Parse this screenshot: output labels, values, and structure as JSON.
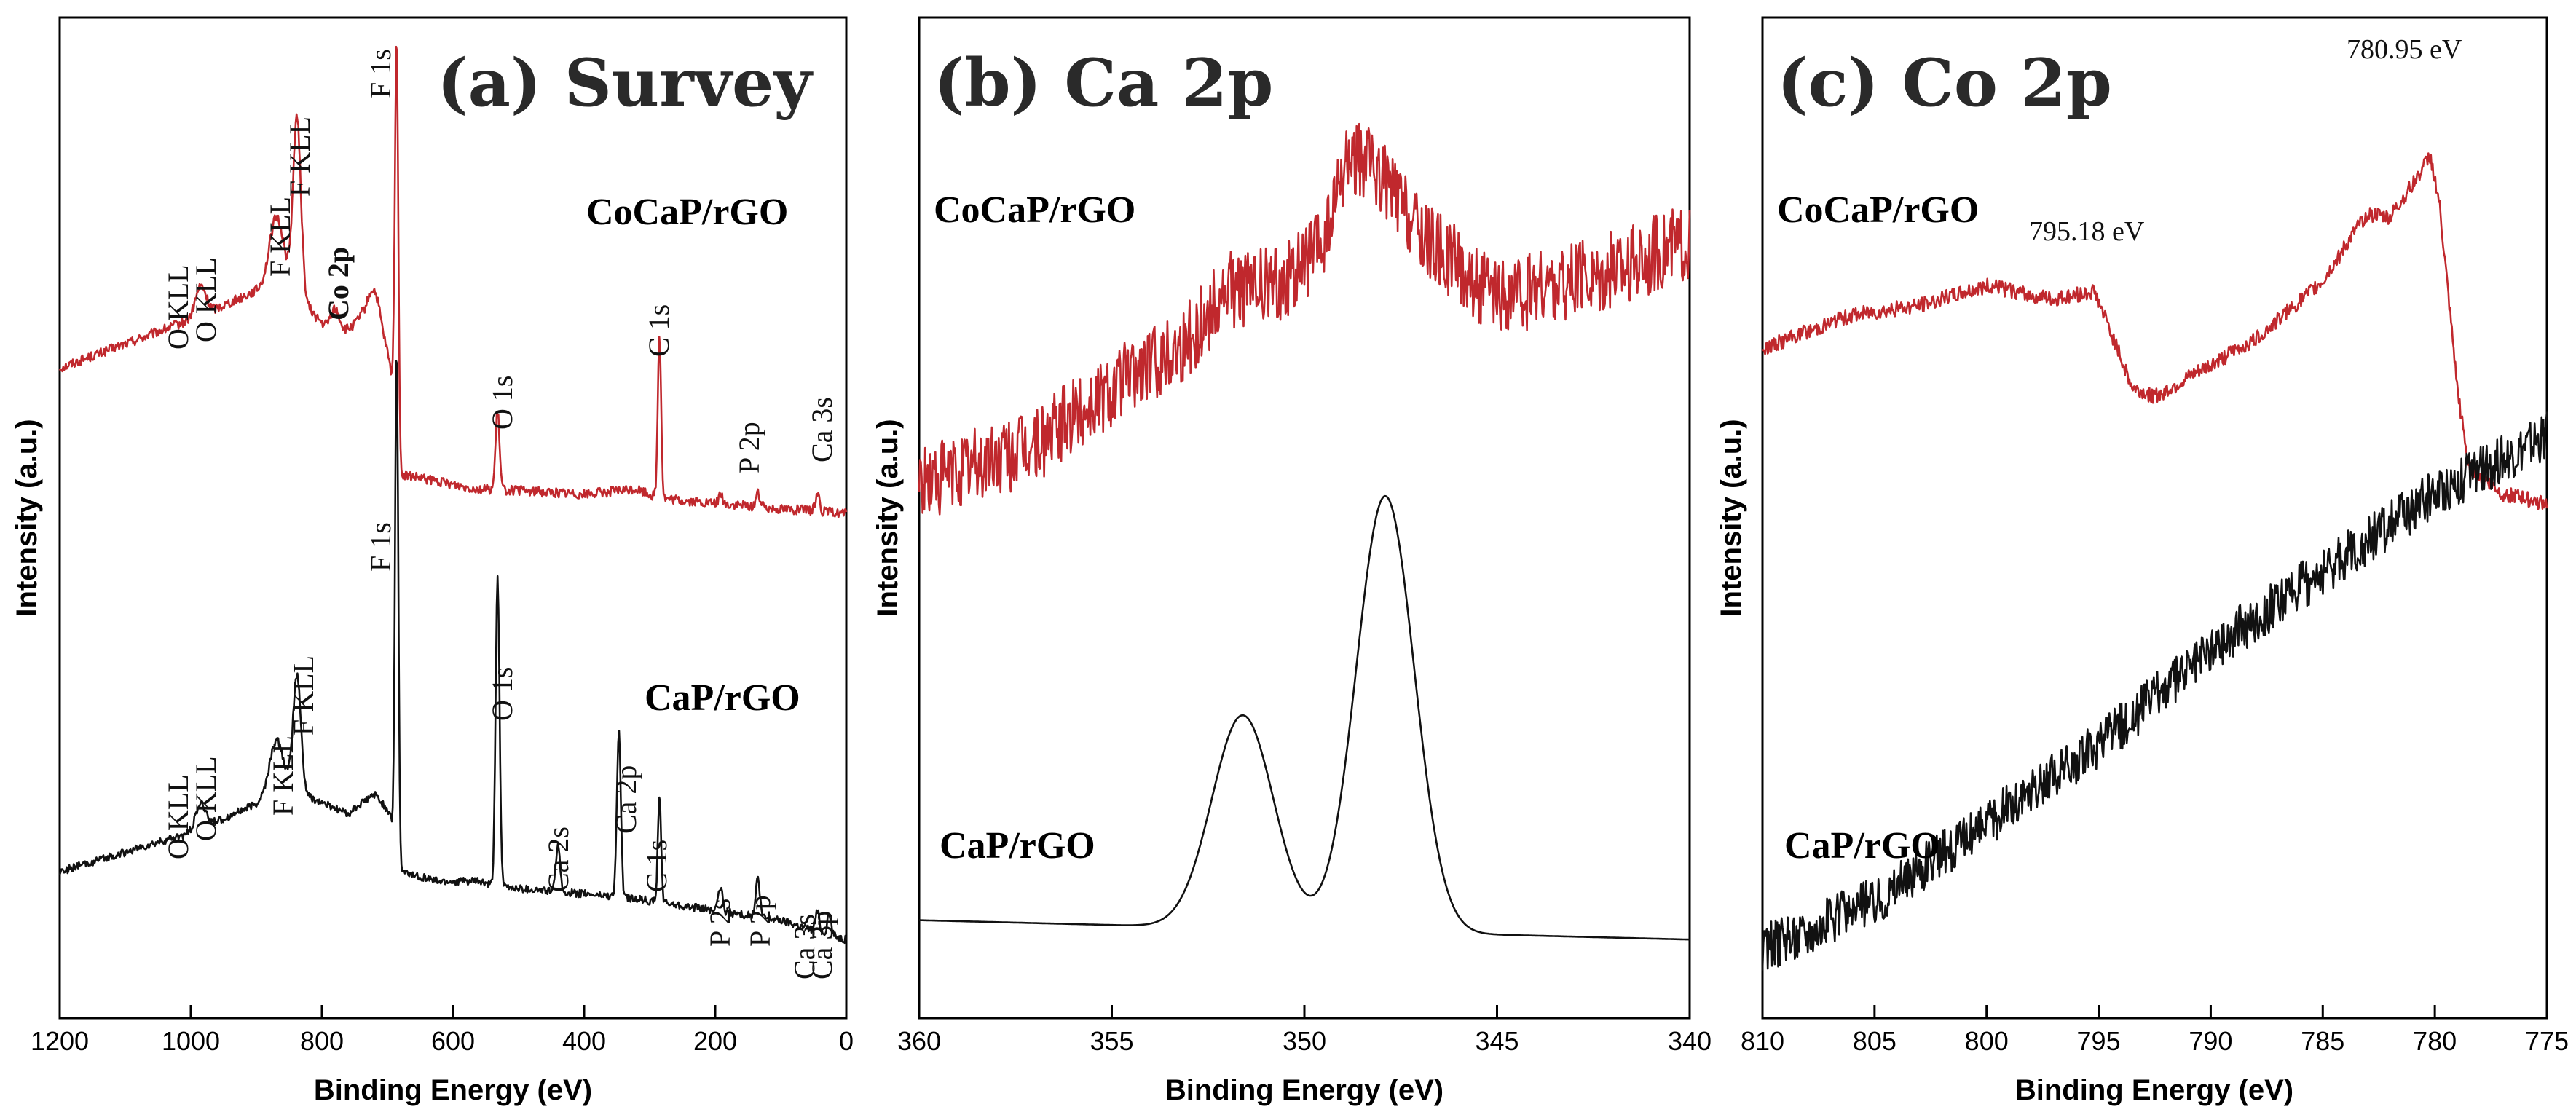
{
  "chart_data": [
    {
      "type": "line",
      "panel": "a",
      "title": "(a) Survey",
      "xlabel": "Binding Energy (eV)",
      "ylabel": "Intensity (a.u.)",
      "xlim": [
        1200,
        0
      ],
      "ylim": [
        0,
        100
      ],
      "xticks": [
        1200,
        1000,
        800,
        600,
        400,
        200,
        0
      ],
      "tick_labels": [
        "1200",
        "1000",
        "800",
        "600",
        "400",
        "200",
        "0"
      ],
      "series": [
        {
          "name": "CoCaP/rGO",
          "color": "#c0282d",
          "baseline": [
            [
              1200,
              65
            ],
            [
              1000,
              70
            ],
            [
              900,
              73
            ],
            [
              860,
              75
            ],
            [
              830,
              72
            ],
            [
              780,
              68
            ],
            [
              740,
              70
            ],
            [
              700,
              66
            ],
            [
              690,
              63
            ],
            [
              680,
              54
            ],
            [
              600,
              53
            ],
            [
              560,
              52.5
            ],
            [
              540,
              52.5
            ],
            [
              400,
              52
            ],
            [
              320,
              52.5
            ],
            [
              300,
              52
            ],
            [
              280,
              51.5
            ],
            [
              200,
              51
            ],
            [
              100,
              50.5
            ],
            [
              0,
              50
            ]
          ],
          "peaks": [
            [
              985,
              3,
              8
            ],
            [
              870,
              6,
              10
            ],
            [
              838,
              18,
              6
            ],
            [
              780,
              3,
              7
            ],
            [
              720,
              5,
              10
            ],
            [
              686,
              40,
              2.5
            ],
            [
              532,
              8,
              3
            ],
            [
              285,
              17,
              2.5
            ],
            [
              192,
              1,
              3
            ],
            [
              135,
              1.5,
              3
            ],
            [
              44,
              2,
              3
            ]
          ],
          "noise": 0.5,
          "labels": [
            "O KLL",
            "O KLL",
            "F KLL",
            "F KLL",
            "Co 2p",
            "F 1s",
            "O 1s",
            "C 1s",
            "P 2p",
            "Ca 3s"
          ]
        },
        {
          "name": "CaP/rGO",
          "color": "#111111",
          "baseline": [
            [
              1200,
              13
            ],
            [
              1000,
              17
            ],
            [
              900,
              20
            ],
            [
              860,
              22
            ],
            [
              830,
              21
            ],
            [
              760,
              19
            ],
            [
              720,
              21
            ],
            [
              695,
              19
            ],
            [
              690,
              15
            ],
            [
              680,
              13
            ],
            [
              620,
              12
            ],
            [
              560,
              12
            ],
            [
              540,
              11.5
            ],
            [
              450,
              11
            ],
            [
              360,
              10.5
            ],
            [
              300,
              10
            ],
            [
              200,
              9
            ],
            [
              100,
              8
            ],
            [
              0,
              6
            ]
          ],
          "peaks": [
            [
              985,
              2.5,
              8
            ],
            [
              870,
              5,
              10
            ],
            [
              838,
              12,
              6
            ],
            [
              686,
              53,
              2.5
            ],
            [
              532,
              32,
              3
            ],
            [
              440,
              5,
              3
            ],
            [
              347,
              17,
              3
            ],
            [
              285,
              11,
              2.5
            ],
            [
              192,
              2.5,
              3
            ],
            [
              135,
              4,
              3
            ],
            [
              44,
              2,
              3
            ],
            [
              26,
              2,
              3
            ]
          ],
          "noise": 0.4,
          "labels": [
            "O KLL",
            "O KLL",
            "F KLL",
            "F KLL",
            "F 1s",
            "O 1s",
            "Ca 2s",
            "Ca 2p",
            "C 1s",
            "P 2s",
            "P 2p",
            "Ca 3s",
            "Ca 3p"
          ]
        }
      ]
    },
    {
      "type": "line",
      "panel": "b",
      "title": "(b) Ca 2p",
      "xlabel": "Binding Energy (eV)",
      "ylabel": "Intensity (a.u.)",
      "xlim": [
        360,
        340
      ],
      "ylim": [
        0,
        100
      ],
      "xticks": [
        360,
        355,
        350,
        345,
        340
      ],
      "tick_labels": [
        "360",
        "355",
        "350",
        "345",
        "340"
      ],
      "series": [
        {
          "name": "CoCaP/rGO",
          "color": "#c0282d",
          "baseline": [
            [
              360,
              53
            ],
            [
              357,
              57
            ],
            [
              355,
              63
            ],
            [
              353,
              68
            ],
            [
              352,
              73
            ],
            [
              350.5,
              74
            ],
            [
              349.5,
              78
            ],
            [
              348.8,
              87
            ],
            [
              348,
              85
            ],
            [
              347,
              79
            ],
            [
              345,
              72
            ],
            [
              343,
              74
            ],
            [
              340,
              78
            ]
          ],
          "noise": 4,
          "peaks": []
        },
        {
          "name": "CaP/rGO",
          "color": "#111111",
          "baseline": [
            [
              360,
              8
            ],
            [
              355,
              7.5
            ],
            [
              350,
              7
            ],
            [
              345,
              6.5
            ],
            [
              340,
              6
            ]
          ],
          "peaks": [
            [
              351.6,
              22,
              0.8
            ],
            [
              347.9,
              45,
              0.75
            ]
          ],
          "noise": 0
        }
      ]
    },
    {
      "type": "line",
      "panel": "c",
      "title": "(c) Co 2p",
      "xlabel": "Binding Energy (eV)",
      "ylabel": "Intensity (a.u.)",
      "xlim": [
        810,
        775
      ],
      "ylim": [
        0,
        100
      ],
      "xticks": [
        810,
        805,
        800,
        795,
        790,
        785,
        780,
        775
      ],
      "tick_labels": [
        "810",
        "805",
        "800",
        "795",
        "790",
        "785",
        "780",
        "775"
      ],
      "annotations": [
        "780.95 eV",
        "795.18 eV"
      ],
      "series": [
        {
          "name": "CoCaP/rGO",
          "color": "#c0282d",
          "baseline": [
            [
              810,
              67
            ],
            [
              806,
              70.5
            ],
            [
              803,
              71.5
            ],
            [
              800,
              73.5
            ],
            [
              797,
              72
            ],
            [
              795.2,
              73
            ],
            [
              794.5,
              69
            ],
            [
              793.5,
              63
            ],
            [
              792.5,
              62
            ],
            [
              791,
              64
            ],
            [
              788,
              68
            ],
            [
              785,
              74
            ],
            [
              783,
              81
            ],
            [
              782,
              80.5
            ],
            [
              781,
              84
            ],
            [
              780.2,
              87
            ],
            [
              779.8,
              82
            ],
            [
              779,
              63
            ],
            [
              778.5,
              55
            ],
            [
              777,
              52
            ],
            [
              775,
              51
            ]
          ],
          "noise": 0.8,
          "peaks": []
        },
        {
          "name": "CaP/rGO",
          "color": "#111111",
          "baseline": [
            [
              810,
              5
            ],
            [
              805,
              10
            ],
            [
              800,
              18
            ],
            [
              795,
              26
            ],
            [
              790,
              36
            ],
            [
              785,
              44
            ],
            [
              780,
              52
            ],
            [
              775,
              58
            ]
          ],
          "noise": 2.5,
          "peaks": []
        }
      ]
    }
  ],
  "panel_a": {
    "title": "(a) Survey",
    "top_sample": "CoCaP/rGO",
    "bottom_sample": "CaP/rGO",
    "top_peaks": [
      "O KLL",
      "O KLL",
      "F KLL",
      "F KLL",
      "Co 2p",
      "F 1s",
      "O 1s",
      "C 1s",
      "P 2p",
      "Ca 3s"
    ],
    "bottom_peaks": [
      "O KLL",
      "O KLL",
      "F KLL",
      "F KLL",
      "F 1s",
      "O 1s",
      "Ca 2s",
      "Ca 2p",
      "C 1s",
      "P 2s",
      "P 2p",
      "Ca 3s",
      "Ca 3p"
    ]
  },
  "panel_b": {
    "title": "(b) Ca 2p",
    "top_sample": "CoCaP/rGO",
    "bottom_sample": "CaP/rGO"
  },
  "panel_c": {
    "title": "(c) Co 2p",
    "top_sample": "CoCaP/rGO",
    "bottom_sample": "CaP/rGO",
    "peak_1": "780.95 eV",
    "peak_2": "795.18 eV"
  },
  "axes": {
    "xlabel": "Binding Energy (eV)",
    "ylabel": "Intensity (a.u.)"
  }
}
